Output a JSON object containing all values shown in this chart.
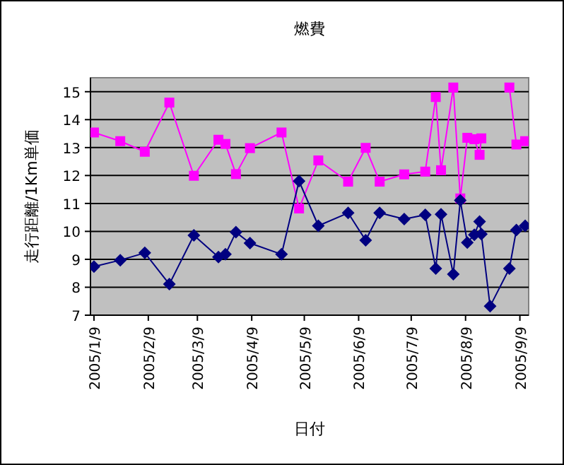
{
  "chart_data": {
    "type": "line",
    "title": "燃費",
    "xlabel": "日付",
    "ylabel": "走行距離/1Km単価",
    "x": [
      "2005-01-09",
      "2005-01-24",
      "2005-02-07",
      "2005-02-21",
      "2005-03-07",
      "2005-03-21",
      "2005-03-25",
      "2005-03-31",
      "2005-04-08",
      "2005-04-26",
      "2005-05-06",
      "2005-05-17",
      "2005-06-03",
      "2005-06-13",
      "2005-06-21",
      "2005-07-05",
      "2005-07-17",
      "2005-07-23",
      "2005-07-26",
      "2005-08-02",
      "2005-08-06",
      "2005-08-10",
      "2005-08-14",
      "2005-08-17",
      "2005-08-18",
      "2005-08-23",
      "2005-09-03",
      "2005-09-07",
      "2005-09-12"
    ],
    "series": [
      {
        "color": "#000080",
        "marker": "diamond",
        "values": [
          8.74,
          8.97,
          9.23,
          8.11,
          9.86,
          9.08,
          9.18,
          9.97,
          9.58,
          9.18,
          11.8,
          10.2,
          10.66,
          9.68,
          10.66,
          10.44,
          10.59,
          8.67,
          10.61,
          8.47,
          11.11,
          9.6,
          9.88,
          10.35,
          9.9,
          7.32,
          8.67,
          10.05,
          10.2
        ]
      },
      {
        "color": "#ff00ff",
        "marker": "square",
        "values": [
          13.54,
          13.23,
          12.85,
          14.61,
          11.99,
          13.28,
          13.13,
          12.05,
          12.98,
          13.54,
          10.82,
          12.54,
          11.78,
          12.99,
          11.78,
          12.04,
          12.14,
          14.81,
          12.19,
          15.15,
          11.18,
          13.35,
          13.3,
          12.74,
          13.33,
          null,
          15.15,
          13.11,
          13.23
        ]
      }
    ],
    "xlim": [
      "2005-01-07",
      "2005-09-14"
    ],
    "xticks": [
      {
        "value": "2005-01-09",
        "label": "2005/1/9"
      },
      {
        "value": "2005-02-09",
        "label": "2005/2/9"
      },
      {
        "value": "2005-03-09",
        "label": "2005/3/9"
      },
      {
        "value": "2005-04-09",
        "label": "2005/4/9"
      },
      {
        "value": "2005-05-09",
        "label": "2005/5/9"
      },
      {
        "value": "2005-06-09",
        "label": "2005/6/9"
      },
      {
        "value": "2005-07-09",
        "label": "2005/7/9"
      },
      {
        "value": "2005-08-09",
        "label": "2005/8/9"
      },
      {
        "value": "2005-09-09",
        "label": "2005/9/9"
      }
    ],
    "ylim": [
      7,
      15.5
    ],
    "yticks": [
      7,
      8,
      9,
      10,
      11,
      12,
      13,
      14,
      15
    ],
    "grid": "y"
  }
}
